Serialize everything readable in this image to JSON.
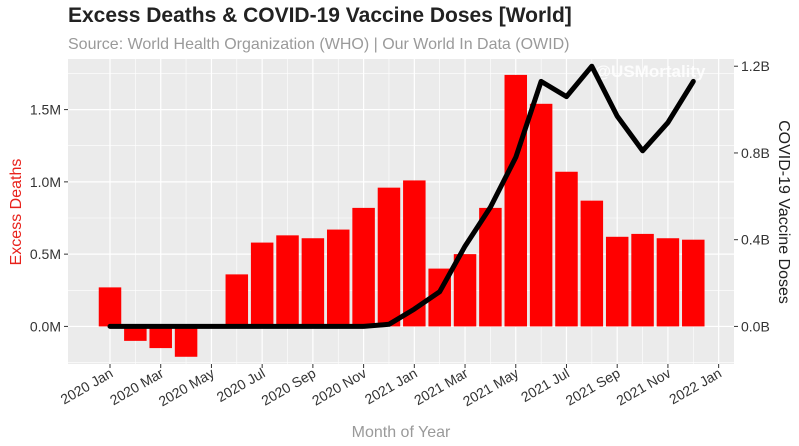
{
  "chart_data": {
    "type": "bar",
    "title": "Excess Deaths & COVID-19 Vaccine Doses [World]",
    "subtitle": "Source: World Health Organization (WHO) | Our World In Data (OWID)",
    "watermark": "@USMortality",
    "xlabel": "Month of Year",
    "ylabel": "Excess Deaths",
    "ylabel_right": "COVID-19 Vaccine Doses",
    "ylim": [
      -260000,
      1850000
    ],
    "ylim_right": [
      -0.1733,
      1.2333
    ],
    "grid": true,
    "colors": {
      "bars": "#ff0000",
      "line": "#000000",
      "panel": "#ebebeb",
      "grid": "#ffffff",
      "ylabel": "#e8211b",
      "muted": "#9a9a9a",
      "title": "#222222"
    },
    "x_ticks": [
      "2020 Jan",
      "2020 Mar",
      "2020 May",
      "2020 Jul",
      "2020 Sep",
      "2020 Nov",
      "2021 Jan",
      "2021 Mar",
      "2021 May",
      "2021 Jul",
      "2021 Sep",
      "2021 Nov",
      "2022 Jan"
    ],
    "y_ticks": [
      "0.0M",
      "0.5M",
      "1.0M",
      "1.5M"
    ],
    "y_tick_values": [
      0,
      500000,
      1000000,
      1500000
    ],
    "y2_ticks": [
      "0.0B",
      "0.4B",
      "0.8B",
      "1.2B"
    ],
    "y2_tick_values": [
      0,
      0.4,
      0.8,
      1.2
    ],
    "categories": [
      "2020-01",
      "2020-02",
      "2020-03",
      "2020-04",
      "2020-05",
      "2020-06",
      "2020-07",
      "2020-08",
      "2020-09",
      "2020-10",
      "2020-11",
      "2020-12",
      "2021-01",
      "2021-02",
      "2021-03",
      "2021-04",
      "2021-05",
      "2021-06",
      "2021-07",
      "2021-08",
      "2021-09",
      "2021-10",
      "2021-11",
      "2021-12"
    ],
    "series": [
      {
        "name": "Excess Deaths",
        "kind": "bar",
        "axis": "left",
        "values": [
          270000,
          -100000,
          -150000,
          -210000,
          10000,
          360000,
          580000,
          630000,
          610000,
          670000,
          820000,
          960000,
          1010000,
          400000,
          500000,
          820000,
          1740000,
          1540000,
          1070000,
          870000,
          620000,
          640000,
          610000,
          600000
        ]
      },
      {
        "name": "COVID-19 Vaccine Doses",
        "kind": "line",
        "axis": "right",
        "values": [
          0,
          0,
          0,
          0,
          0,
          0,
          0,
          0,
          0,
          0,
          0,
          0.01,
          0.08,
          0.16,
          0.37,
          0.55,
          0.78,
          1.13,
          1.06,
          1.2,
          0.97,
          0.81,
          0.94,
          1.13
        ]
      }
    ]
  }
}
